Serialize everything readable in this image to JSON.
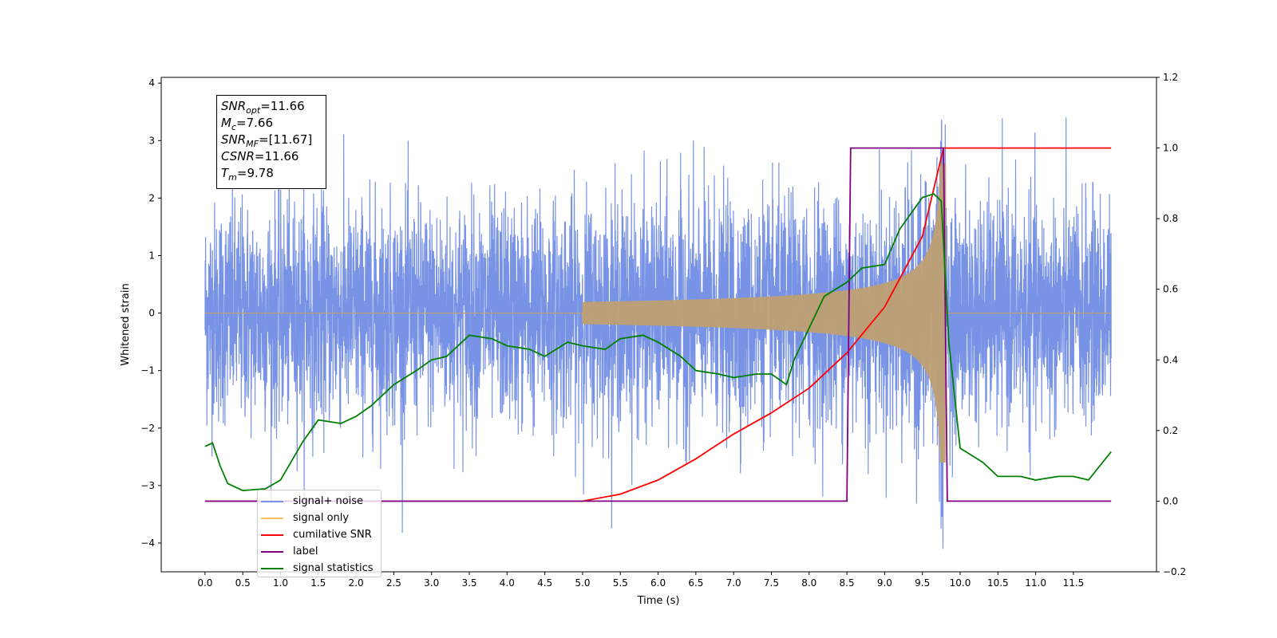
{
  "info_box": {
    "snr_opt": {
      "label": "SNR",
      "sub": "opt",
      "value": "=11.66"
    },
    "mc": {
      "label": "M",
      "sub": "c",
      "value": "=7.66"
    },
    "snr_mf": {
      "label": "SNR",
      "sub": "MF",
      "value": "=[11.67]"
    },
    "csnr": {
      "label": "CSNR",
      "value": "=11.66"
    },
    "tm": {
      "label": "T",
      "sub": "m",
      "value": "=9.78"
    }
  },
  "legend": [
    {
      "label": "signal+ noise",
      "color": "#7893e6"
    },
    {
      "label": "signal only",
      "color": "#ffbf5a"
    },
    {
      "label": "cumilative SNR",
      "color": "#ff0000"
    },
    {
      "label": "label",
      "color": "#800080"
    },
    {
      "label": "signal statistics",
      "color": "#008000"
    }
  ],
  "chart_data": {
    "type": "line",
    "xlabel": "Time (s)",
    "ylabel": "Whitened strain",
    "xlim": [
      -0.58,
      12.6
    ],
    "ylim": [
      -4.5,
      4.1
    ],
    "y2lim": [
      -0.2,
      1.2
    ],
    "x_ticks": [
      "0.0",
      "0.5",
      "1.0",
      "1.5",
      "2.0",
      "2.5",
      "3.0",
      "3.5",
      "4.0",
      "4.5",
      "5.0",
      "5.5",
      "6.0",
      "6.5",
      "7.0",
      "7.5",
      "8.0",
      "8.5",
      "9.0",
      "9.5",
      "10.0",
      "10.5",
      "11.0",
      "11.5"
    ],
    "y_ticks": [
      "4",
      "3",
      "2",
      "1",
      "0",
      "−1",
      "−2",
      "−3",
      "−4"
    ],
    "y2_ticks": [
      "1.2",
      "1.0",
      "0.8",
      "0.6",
      "0.4",
      "0.2",
      "0.0",
      "−0.2"
    ],
    "series": [
      {
        "name": "signal+ noise",
        "axis": "left",
        "color": "#7893e6",
        "description_values": {
          "t_start": 0.0,
          "t_end": 12.0,
          "envelope_max": 3.6,
          "envelope_min": -4.1
        }
      },
      {
        "name": "signal only",
        "axis": "left",
        "color": "#ffbf5a",
        "description_values": {
          "chirp_start": 5.5,
          "merger": 9.78,
          "peak_amplitude": 2.4
        }
      },
      {
        "name": "cumilative SNR",
        "axis": "right",
        "color": "#ff0000",
        "x": [
          0.0,
          5.0,
          5.5,
          6.0,
          6.5,
          7.0,
          7.5,
          8.0,
          8.5,
          9.0,
          9.5,
          9.78,
          12.0
        ],
        "y": [
          0.0,
          0.0,
          0.02,
          0.06,
          0.12,
          0.19,
          0.25,
          0.32,
          0.42,
          0.55,
          0.75,
          1.0,
          1.0
        ]
      },
      {
        "name": "label",
        "axis": "right",
        "color": "#800080",
        "x": [
          0.0,
          8.5,
          8.55,
          9.78,
          9.83,
          12.0
        ],
        "y": [
          0.0,
          0.0,
          1.0,
          1.0,
          0.0,
          0.0
        ]
      },
      {
        "name": "signal statistics",
        "axis": "right",
        "color": "#008000",
        "x": [
          0.0,
          0.1,
          0.2,
          0.3,
          0.5,
          0.8,
          1.0,
          1.3,
          1.5,
          1.8,
          2.0,
          2.2,
          2.5,
          2.8,
          3.0,
          3.2,
          3.5,
          3.8,
          4.0,
          4.3,
          4.5,
          4.8,
          5.0,
          5.3,
          5.5,
          5.8,
          6.0,
          6.3,
          6.5,
          6.8,
          7.0,
          7.3,
          7.5,
          7.7,
          7.8,
          8.0,
          8.2,
          8.5,
          8.7,
          9.0,
          9.2,
          9.5,
          9.65,
          9.75,
          9.85,
          10.0,
          10.3,
          10.5,
          10.8,
          11.0,
          11.3,
          11.5,
          11.7,
          12.0
        ],
        "y": [
          0.155,
          0.165,
          0.1,
          0.05,
          0.03,
          0.035,
          0.06,
          0.17,
          0.23,
          0.22,
          0.24,
          0.27,
          0.33,
          0.37,
          0.4,
          0.41,
          0.47,
          0.46,
          0.44,
          0.43,
          0.41,
          0.45,
          0.44,
          0.43,
          0.46,
          0.47,
          0.45,
          0.41,
          0.37,
          0.36,
          0.35,
          0.36,
          0.36,
          0.33,
          0.4,
          0.49,
          0.58,
          0.62,
          0.66,
          0.67,
          0.77,
          0.86,
          0.87,
          0.85,
          0.45,
          0.15,
          0.11,
          0.07,
          0.07,
          0.06,
          0.07,
          0.07,
          0.06,
          0.14
        ]
      }
    ]
  }
}
